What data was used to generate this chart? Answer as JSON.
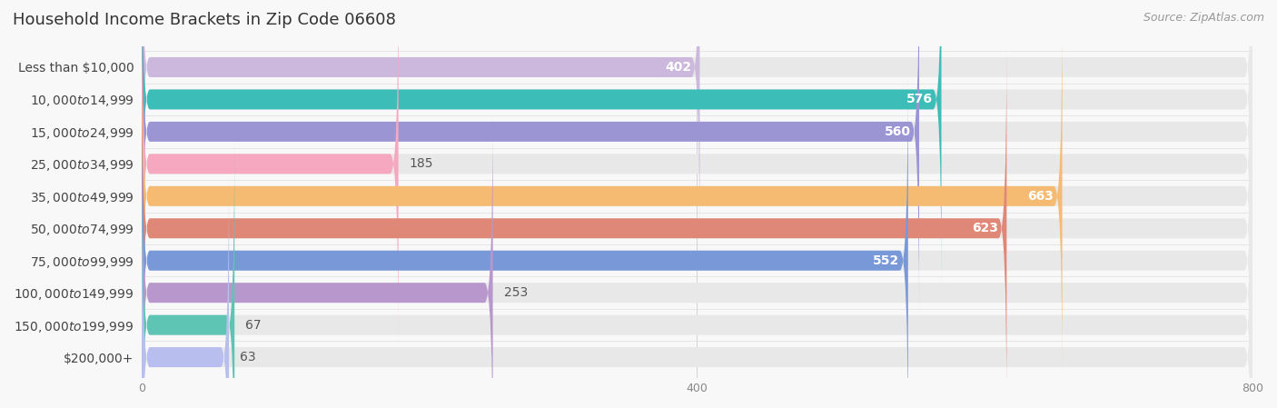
{
  "title": "Household Income Brackets in Zip Code 06608",
  "source": "Source: ZipAtlas.com",
  "categories": [
    "Less than $10,000",
    "$10,000 to $14,999",
    "$15,000 to $24,999",
    "$25,000 to $34,999",
    "$35,000 to $49,999",
    "$50,000 to $74,999",
    "$75,000 to $99,999",
    "$100,000 to $149,999",
    "$150,000 to $199,999",
    "$200,000+"
  ],
  "values": [
    402,
    576,
    560,
    185,
    663,
    623,
    552,
    253,
    67,
    63
  ],
  "bar_colors": [
    "#cbb8dc",
    "#3dbdb8",
    "#9b95d4",
    "#f5a8c0",
    "#f5bb72",
    "#e08878",
    "#7898d8",
    "#b898cc",
    "#5ec4b4",
    "#b8beed"
  ],
  "xlim": [
    0,
    800
  ],
  "xticks": [
    0,
    400,
    800
  ],
  "bar_bg_color": "#e8e8e8",
  "label_inside_threshold": 300,
  "title_fontsize": 13,
  "source_fontsize": 9,
  "value_fontsize": 10,
  "category_fontsize": 10,
  "bar_height": 0.62,
  "background_color": "#f8f8f8"
}
